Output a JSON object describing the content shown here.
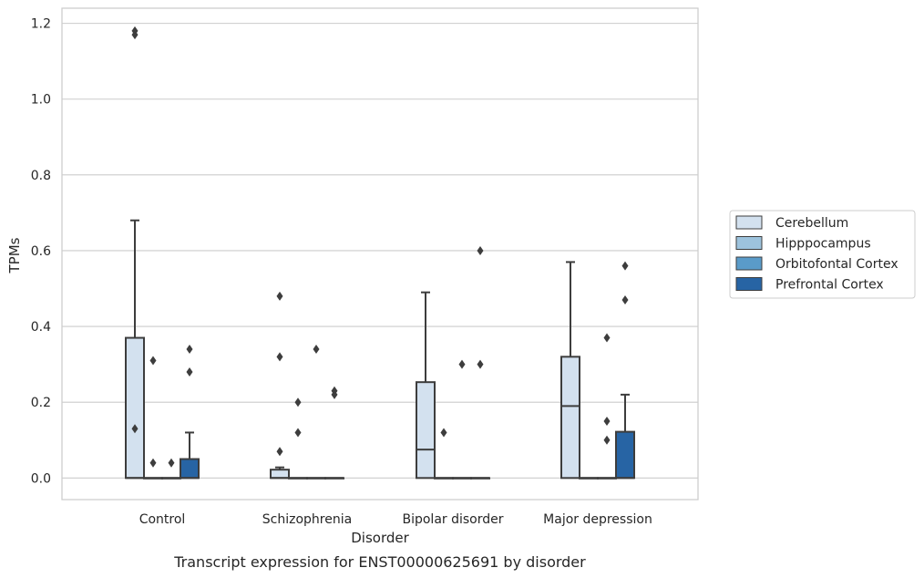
{
  "chart_data": {
    "type": "box",
    "caption": "Transcript expression for ENST00000625691 by disorder",
    "xlabel": "Disorder",
    "ylabel": "TPMs",
    "ylim": [
      -0.057,
      1.24
    ],
    "yticks": [
      0.0,
      0.2,
      0.4,
      0.6,
      0.8,
      1.0,
      1.2
    ],
    "ytick_labels": [
      "0.0",
      "0.2",
      "0.4",
      "0.6",
      "0.8",
      "1.0",
      "1.2"
    ],
    "grid": "horizontal",
    "legend_position": "right",
    "categories": [
      "Control",
      "Schizophrenia",
      "Bipolar disorder",
      "Major depression"
    ],
    "series": [
      {
        "name": "Cerebellum",
        "color": "#d3e1ef",
        "boxes": [
          {
            "q1": 0,
            "median": 0,
            "q3": 0.37,
            "whisker_low": 0,
            "whisker_high": 0.68,
            "outliers": [
              1.17,
              1.18,
              0.13
            ]
          },
          {
            "q1": 0,
            "median": 0,
            "q3": 0.022,
            "whisker_low": 0,
            "whisker_high": 0.028,
            "outliers": [
              0.48,
              0.32,
              0.07
            ]
          },
          {
            "q1": 0,
            "median": 0.075,
            "q3": 0.253,
            "whisker_low": 0,
            "whisker_high": 0.49,
            "outliers": []
          },
          {
            "q1": 0,
            "median": 0.19,
            "q3": 0.32,
            "whisker_low": 0,
            "whisker_high": 0.57,
            "outliers": []
          }
        ]
      },
      {
        "name": "Hipppocampus",
        "color": "#9dc3dd",
        "boxes": [
          {
            "q1": 0,
            "median": 0,
            "q3": 0,
            "whisker_low": 0,
            "whisker_high": 0,
            "outliers": [
              0.31,
              0.04
            ]
          },
          {
            "q1": 0,
            "median": 0,
            "q3": 0,
            "whisker_low": 0,
            "whisker_high": 0,
            "outliers": [
              0.2,
              0.12
            ]
          },
          {
            "q1": 0,
            "median": 0,
            "q3": 0,
            "whisker_low": 0,
            "whisker_high": 0,
            "outliers": [
              0.12
            ]
          },
          {
            "q1": 0,
            "median": 0,
            "q3": 0,
            "whisker_low": 0,
            "whisker_high": 0,
            "outliers": []
          }
        ]
      },
      {
        "name": "Orbitofontal Cortex",
        "color": "#5a9bc9",
        "boxes": [
          {
            "q1": 0,
            "median": 0,
            "q3": 0,
            "whisker_low": 0,
            "whisker_high": 0,
            "outliers": [
              0.04
            ]
          },
          {
            "q1": 0,
            "median": 0,
            "q3": 0,
            "whisker_low": 0,
            "whisker_high": 0,
            "outliers": [
              0.34
            ]
          },
          {
            "q1": 0,
            "median": 0,
            "q3": 0,
            "whisker_low": 0,
            "whisker_high": 0,
            "outliers": [
              0.3
            ]
          },
          {
            "q1": 0,
            "median": 0,
            "q3": 0,
            "whisker_low": 0,
            "whisker_high": 0,
            "outliers": [
              0.37,
              0.15,
              0.1
            ]
          }
        ]
      },
      {
        "name": "Prefrontal Cortex",
        "color": "#2764a4",
        "boxes": [
          {
            "q1": 0,
            "median": 0,
            "q3": 0.05,
            "whisker_low": 0,
            "whisker_high": 0.12,
            "outliers": [
              0.34,
              0.28
            ]
          },
          {
            "q1": 0,
            "median": 0,
            "q3": 0,
            "whisker_low": 0,
            "whisker_high": 0,
            "outliers": [
              0.23,
              0.22
            ]
          },
          {
            "q1": 0,
            "median": 0,
            "q3": 0,
            "whisker_low": 0,
            "whisker_high": 0,
            "outliers": [
              0.6,
              0.3
            ]
          },
          {
            "q1": 0,
            "median": 0,
            "q3": 0.122,
            "whisker_low": 0,
            "whisker_high": 0.22,
            "outliers": [
              0.56,
              0.47
            ]
          }
        ]
      }
    ]
  }
}
